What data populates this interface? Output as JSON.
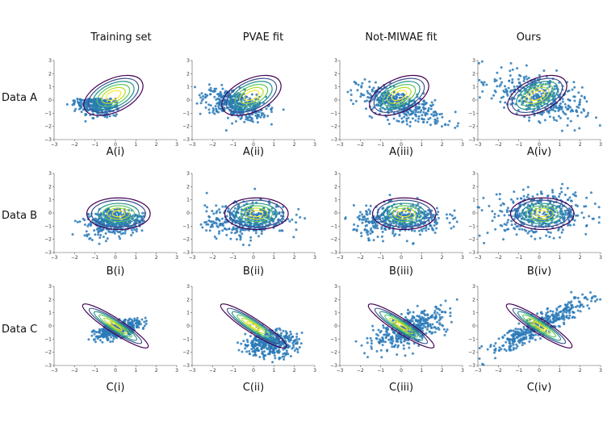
{
  "figure": {
    "column_titles": [
      "Training set",
      "PVAE fit",
      "Not-MIWAE fit",
      "Ours"
    ],
    "row_titles": [
      "Data A",
      "Data B",
      "Data C"
    ],
    "panel_labels": [
      [
        "A(i)",
        "A(ii)",
        "A(iii)",
        "A(iv)"
      ],
      [
        "B(i)",
        "B(ii)",
        "B(iii)",
        "B(iv)"
      ],
      [
        "C(i)",
        "C(ii)",
        "C(iii)",
        "C(iv)"
      ]
    ]
  },
  "colors": {
    "points": "#2a7ab8",
    "contours": [
      "#440154",
      "#3b528b",
      "#21918c",
      "#5ec962",
      "#b5de2b",
      "#fde725"
    ]
  },
  "chart_data": {
    "type": "scatter",
    "xlim": [
      -3,
      3
    ],
    "ylim": [
      -3,
      3
    ],
    "xticks": [
      -3,
      -2,
      -1,
      0,
      1,
      2,
      3
    ],
    "yticks": [
      -3,
      -2,
      -1,
      0,
      1,
      2,
      3
    ],
    "grid": false,
    "rows": [
      {
        "name": "Data A",
        "contour": {
          "center": [
            -0.1,
            0.35
          ],
          "sx": 1.55,
          "sy": 1.25,
          "angle_deg": -25,
          "levels": [
            0.25,
            0.4,
            0.55,
            0.7,
            0.85,
            1.0
          ]
        },
        "panels": [
          {
            "label": "A(i)",
            "cloud": {
              "center": [
                -0.9,
                -0.3
              ],
              "sx": 0.55,
              "sy": 0.45,
              "rho": -0.3
            },
            "clip": "x<0.2 & y<0.1"
          },
          {
            "label": "A(ii)",
            "cloud": {
              "center": [
                -0.9,
                -0.3
              ],
              "sx": 0.75,
              "sy": 0.6,
              "rho": -0.45
            }
          },
          {
            "label": "A(iii)",
            "cloud": {
              "center": [
                -0.1,
                -0.35
              ],
              "sx": 1.05,
              "sy": 0.7,
              "rho": -0.65
            }
          },
          {
            "label": "A(iv)",
            "cloud": {
              "center": [
                -0.1,
                0.25
              ],
              "sx": 1.1,
              "sy": 0.95,
              "rho": -0.5
            }
          }
        ]
      },
      {
        "name": "Data B",
        "contour": {
          "center": [
            0.15,
            -0.05
          ],
          "sx": 1.55,
          "sy": 1.2,
          "angle_deg": 0,
          "levels": [
            0.2,
            0.35,
            0.5,
            0.65,
            0.85,
            1.0
          ]
        },
        "panels": [
          {
            "label": "B(i)",
            "cloud": {
              "center": [
                0.0,
                -0.6
              ],
              "sx": 0.75,
              "sy": 0.55,
              "rho": 0.2
            },
            "clip": "triangle"
          },
          {
            "label": "B(ii)",
            "cloud": {
              "center": [
                -0.3,
                -0.5
              ],
              "sx": 1.0,
              "sy": 0.65,
              "rho": 0.2
            }
          },
          {
            "label": "B(iii)",
            "cloud": {
              "center": [
                -0.1,
                -0.55
              ],
              "sx": 1.1,
              "sy": 0.6,
              "rho": 0.15
            }
          },
          {
            "label": "B(iv)",
            "cloud": {
              "center": [
                0.1,
                -0.05
              ],
              "sx": 1.25,
              "sy": 0.8,
              "rho": 0.05
            }
          }
        ]
      },
      {
        "name": "Data C",
        "contour": {
          "center": [
            0.0,
            0.0
          ],
          "sx": 1.9,
          "sy": 0.55,
          "angle_deg": 33,
          "levels": [
            0.2,
            0.35,
            0.5,
            0.65,
            0.8,
            1.0
          ]
        },
        "panels": [
          {
            "label": "C(i)",
            "cloud": {
              "center": [
                0.1,
                -0.3
              ],
              "sx": 0.55,
              "sy": 0.35,
              "rho": 0.6
            }
          },
          {
            "label": "C(ii)",
            "cloud": {
              "center": [
                0.8,
                -1.3
              ],
              "sx": 0.65,
              "sy": 0.5,
              "rho": 0.1
            }
          },
          {
            "label": "C(iii)",
            "cloud": {
              "center": [
                0.5,
                -0.2
              ],
              "sx": 0.9,
              "sy": 0.75,
              "rho": 0.65
            }
          },
          {
            "label": "C(iv)",
            "cloud": {
              "center": [
                0.0,
                0.0
              ],
              "sx": 1.3,
              "sy": 1.1,
              "rho": 0.93
            }
          }
        ]
      }
    ]
  }
}
